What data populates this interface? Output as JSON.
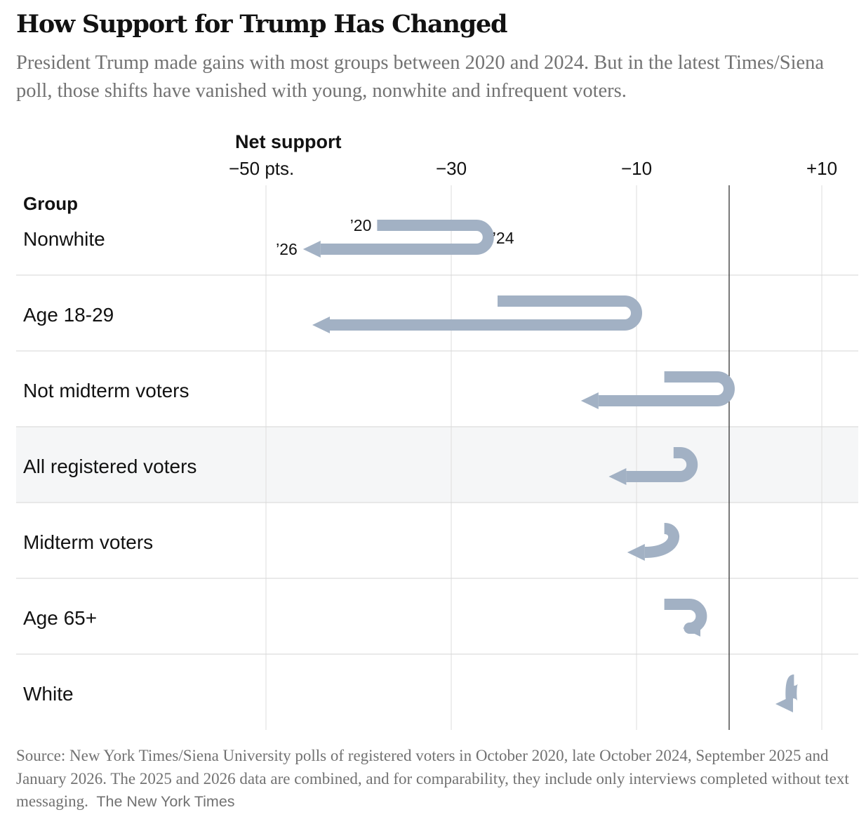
{
  "title": "How Support for Trump Has Changed",
  "subtitle": "President Trump made gains with most groups between 2020 and 2024. But in the latest Times/Siena poll, those shifts have vanished with young, nonwhite and infrequent voters.",
  "source": "Source: New York Times/Siena University polls of registered voters in October 2020, late October 2024, September 2025 and January 2026. The 2025 and 2026 data are combined, and for comparability, they include only interviews completed without text messaging.",
  "credit": "The New York Times",
  "chart_data": {
    "type": "bar",
    "axis_title": "Net support",
    "column_header": "Group",
    "x_ticks": [
      {
        "value": -50,
        "label": "−50 pts."
      },
      {
        "value": -30,
        "label": "−30"
      },
      {
        "value": -10,
        "label": "−10"
      },
      {
        "value": 10,
        "label": "+10"
      }
    ],
    "xlim": [
      -50,
      10
    ],
    "year_labels": [
      "’20",
      "’24",
      "’26"
    ],
    "grid": true,
    "zero_line": true,
    "highlight_row": "All registered voters",
    "bar_color": "#a2b1c4",
    "highlight_bg": "#f5f6f7",
    "rows": [
      {
        "group": "Nonwhite",
        "v2020": -38,
        "v2024": -26,
        "v2026": -46
      },
      {
        "group": "Age 18-29",
        "v2020": -25,
        "v2024": -10,
        "v2026": -45
      },
      {
        "group": "Not midterm voters",
        "v2020": -7,
        "v2024": 0,
        "v2026": -16
      },
      {
        "group": "All registered voters",
        "v2020": -6,
        "v2024": -4,
        "v2026": -13
      },
      {
        "group": "Midterm voters",
        "v2020": -7,
        "v2024": -6,
        "v2026": -11
      },
      {
        "group": "Age 65+",
        "v2020": -7,
        "v2024": -3,
        "v2026": -5
      },
      {
        "group": "White",
        "v2020": 7,
        "v2024": 6,
        "v2026": 5
      }
    ]
  }
}
